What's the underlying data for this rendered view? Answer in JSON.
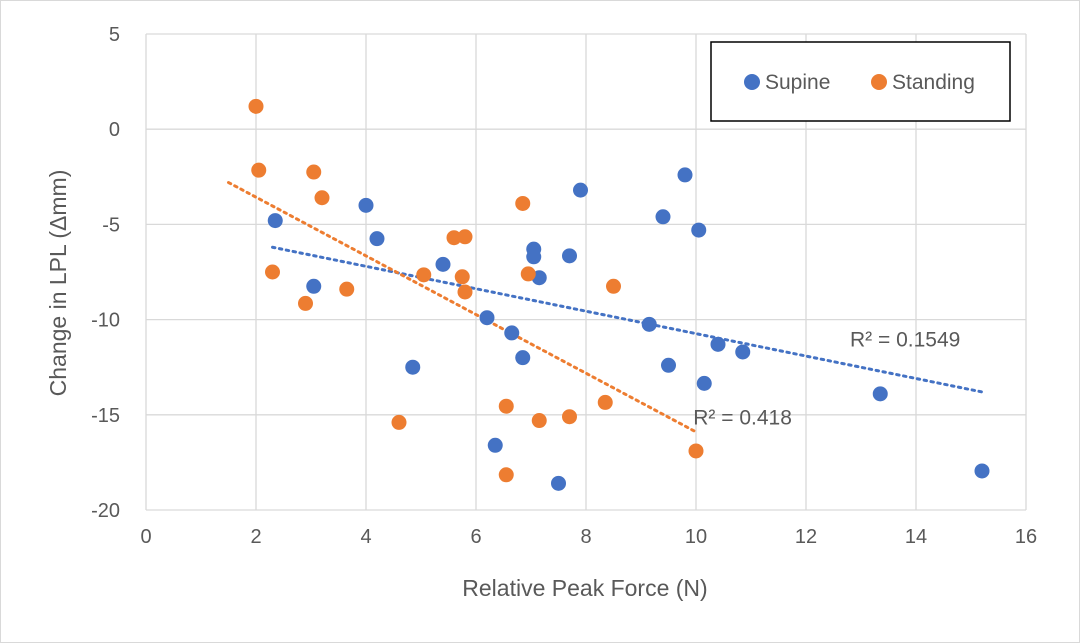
{
  "chart_data": {
    "type": "scatter",
    "title": "",
    "xlabel": "Relative Peak Force (N)",
    "ylabel": "Change in LPL (Δmm)",
    "xlim": [
      0,
      16
    ],
    "ylim": [
      -20,
      5
    ],
    "x_ticks": [
      0,
      2,
      4,
      6,
      8,
      10,
      12,
      14,
      16
    ],
    "y_ticks": [
      5,
      0,
      -5,
      -10,
      -15,
      -20
    ],
    "grid": true,
    "legend_position": "top-right",
    "series": [
      {
        "name": "Supine",
        "color": "#4472c4",
        "points": [
          [
            2.35,
            -4.8
          ],
          [
            3.05,
            -8.25
          ],
          [
            4.0,
            -4.0
          ],
          [
            4.2,
            -5.75
          ],
          [
            4.85,
            -12.5
          ],
          [
            5.4,
            -7.1
          ],
          [
            6.2,
            -9.9
          ],
          [
            6.35,
            -16.6
          ],
          [
            6.65,
            -10.7
          ],
          [
            6.85,
            -12.0
          ],
          [
            7.05,
            -6.3
          ],
          [
            7.05,
            -6.7
          ],
          [
            7.15,
            -7.8
          ],
          [
            7.5,
            -18.6
          ],
          [
            7.7,
            -6.65
          ],
          [
            7.9,
            -3.2
          ],
          [
            9.15,
            -10.25
          ],
          [
            9.4,
            -4.6
          ],
          [
            9.5,
            -12.4
          ],
          [
            9.8,
            -2.4
          ],
          [
            10.05,
            -5.3
          ],
          [
            10.15,
            -13.35
          ],
          [
            10.4,
            -11.3
          ],
          [
            10.85,
            -11.7
          ],
          [
            13.35,
            -13.9
          ],
          [
            15.2,
            -17.95
          ]
        ],
        "trendline": {
          "x": [
            2.3,
            15.2
          ],
          "y": [
            -6.2,
            -13.8
          ]
        },
        "r_squared_label": "R² = 0.1549"
      },
      {
        "name": "Standing",
        "color": "#ed7d31",
        "points": [
          [
            2.0,
            1.2
          ],
          [
            2.05,
            -2.15
          ],
          [
            2.3,
            -7.5
          ],
          [
            2.9,
            -9.15
          ],
          [
            3.05,
            -2.25
          ],
          [
            3.2,
            -3.6
          ],
          [
            3.65,
            -8.4
          ],
          [
            4.6,
            -15.4
          ],
          [
            5.05,
            -7.65
          ],
          [
            5.6,
            -5.7
          ],
          [
            5.75,
            -7.75
          ],
          [
            5.8,
            -5.65
          ],
          [
            5.8,
            -8.55
          ],
          [
            6.55,
            -14.55
          ],
          [
            6.55,
            -18.15
          ],
          [
            6.85,
            -3.9
          ],
          [
            6.95,
            -7.6
          ],
          [
            7.15,
            -15.3
          ],
          [
            7.7,
            -15.1
          ],
          [
            8.35,
            -14.35
          ],
          [
            8.5,
            -8.25
          ],
          [
            10.0,
            -16.9
          ]
        ],
        "trendline": {
          "x": [
            1.5,
            10.0
          ],
          "y": [
            -2.8,
            -15.9
          ]
        },
        "r_squared_label": "R² = 0.418"
      }
    ]
  }
}
